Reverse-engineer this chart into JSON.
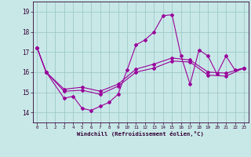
{
  "title": "",
  "xlabel": "Windchill (Refroidissement éolien,°C)",
  "ylabel": "",
  "background_color": "#c8e8e8",
  "grid_color": "#a0c8c8",
  "line_color": "#990099",
  "xlim": [
    -0.5,
    23.5
  ],
  "ylim": [
    13.5,
    19.5
  ],
  "yticks": [
    14,
    15,
    16,
    17,
    18,
    19
  ],
  "xticks": [
    0,
    1,
    2,
    3,
    4,
    5,
    6,
    7,
    8,
    9,
    10,
    11,
    12,
    13,
    14,
    15,
    16,
    17,
    18,
    19,
    20,
    21,
    22,
    23
  ],
  "series1_x": [
    0,
    1,
    3,
    4,
    5,
    6,
    7,
    8,
    9,
    10,
    11,
    12,
    13,
    14,
    15,
    16,
    17,
    18,
    19,
    20,
    21,
    22,
    23
  ],
  "series1_y": [
    17.2,
    16.0,
    14.7,
    14.8,
    14.2,
    14.1,
    14.3,
    14.5,
    14.9,
    16.1,
    17.35,
    17.6,
    18.0,
    18.8,
    18.85,
    16.8,
    15.4,
    17.1,
    16.8,
    15.9,
    16.8,
    16.1,
    16.2
  ],
  "series2_x": [
    0,
    1,
    3,
    5,
    7,
    9,
    11,
    13,
    15,
    17,
    19,
    21,
    23
  ],
  "series2_y": [
    17.2,
    16.0,
    15.15,
    15.25,
    15.05,
    15.4,
    16.15,
    16.4,
    16.7,
    16.6,
    16.0,
    15.95,
    16.2
  ],
  "series3_x": [
    0,
    1,
    3,
    5,
    7,
    9,
    11,
    13,
    15,
    17,
    19,
    21,
    23
  ],
  "series3_y": [
    17.2,
    16.0,
    15.05,
    15.1,
    14.9,
    15.3,
    16.0,
    16.2,
    16.55,
    16.5,
    15.85,
    15.8,
    16.2
  ]
}
